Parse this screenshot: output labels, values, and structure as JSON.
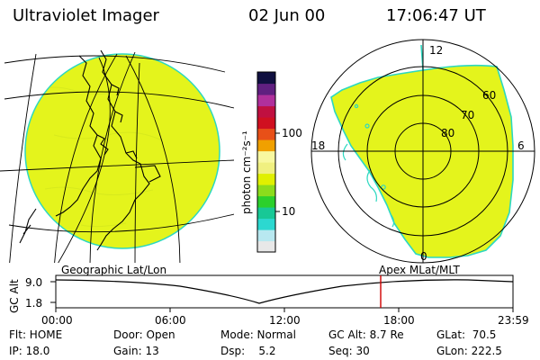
{
  "header": {
    "title": "Ultraviolet Imager",
    "date": "02 Jun 00",
    "time": "17:06:47 UT"
  },
  "colorbar": {
    "unit_label": "photon cm⁻²s⁻¹",
    "tick_high": "100",
    "tick_low": "10",
    "colors": [
      "#e8e8e8",
      "#b8e8f0",
      "#2cd8d0",
      "#18c896",
      "#2cd02c",
      "#8cdc1c",
      "#e0f000",
      "#f0f080",
      "#f8f8a0",
      "#f0a000",
      "#e85018",
      "#d01020",
      "#c01040",
      "#b0309c",
      "#602080",
      "#101040"
    ]
  },
  "left_panel": {
    "projection_label": "Geographic Lat/Lon",
    "disk_color": "#e4f41c",
    "edge_color": "#2cd8c0"
  },
  "right_panel": {
    "projection_label": "Apex MLat/MLT",
    "mlt_12": "12",
    "mlt_18": "18",
    "mlt_6": "6",
    "mlt_0": "0",
    "lat_60": "60",
    "lat_70": "70",
    "lat_80": "80"
  },
  "timeline": {
    "ylabel": "GC Alt",
    "y_high": "9.0",
    "y_low": "1.8",
    "ticks": [
      "00:00",
      "06:00",
      "12:00",
      "18:00",
      "23:59"
    ],
    "current_marker_color": "#d00000"
  },
  "footer": {
    "flt": "Flt: HOME",
    "ip": "IP: 18.0",
    "door": "Door: Open",
    "gain": "Gain: 13",
    "mode": "Mode: Normal",
    "dsp": "Dsp:    5.2",
    "gcalt": "GC Alt: 8.7 Re",
    "seq": "Seq: 30",
    "glat": "GLat:  70.5",
    "glon": "GLon: 222.5"
  }
}
